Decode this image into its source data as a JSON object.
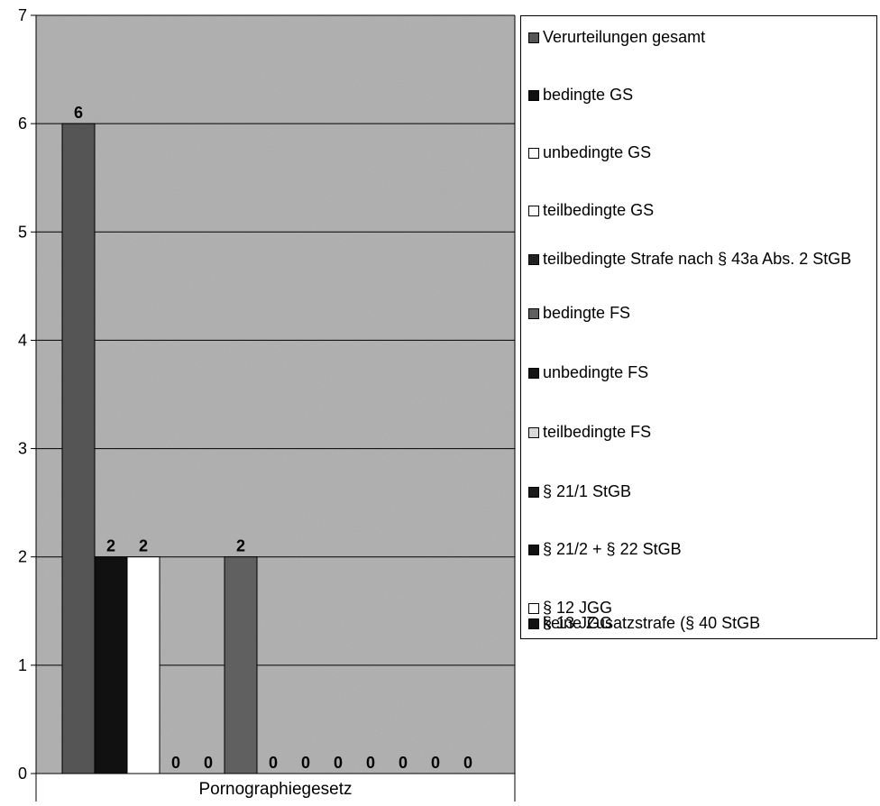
{
  "chart_data": {
    "type": "bar",
    "categories": [
      "Pornographiegesetz"
    ],
    "series": [
      {
        "name": "Verurteilungen gesamt",
        "values": [
          6
        ],
        "color": "#555555"
      },
      {
        "name": "bedingte GS",
        "values": [
          2
        ],
        "color": "#111111"
      },
      {
        "name": "unbedingte GS",
        "values": [
          2
        ],
        "color": "#ffffff"
      },
      {
        "name": "teilbedingte GS",
        "values": [
          0
        ],
        "color": "#ffffff"
      },
      {
        "name": "teilbedingte Strafe nach § 43a Abs. 2 StGB",
        "values": [
          0
        ],
        "color": "#222222"
      },
      {
        "name": "bedingte FS",
        "values": [
          2
        ],
        "color": "#606060"
      },
      {
        "name": "unbedingte FS",
        "values": [
          0
        ],
        "color": "#151515"
      },
      {
        "name": "teilbedingte FS",
        "values": [
          0
        ],
        "color": "#d8d8d8"
      },
      {
        "name": "§ 21/1 StGB",
        "values": [
          0
        ],
        "color": "#1a1a1a"
      },
      {
        "name": "§ 21/2 + § 22 StGB",
        "values": [
          0
        ],
        "color": "#111111"
      },
      {
        "name": "§ 12 JGG",
        "values": [
          0
        ],
        "color": "#ffffff"
      },
      {
        "name": "§ 13 JGG",
        "values": [
          0
        ],
        "color": "#7a7a7a"
      },
      {
        "name": "keine Zusatzstrafe (§ 40 StGB",
        "values": [
          0
        ],
        "color": "#111111"
      }
    ],
    "y_ticks": [
      "0",
      "1",
      "2",
      "3",
      "4",
      "5",
      "6",
      "7"
    ],
    "ylim": [
      0,
      7
    ],
    "grid": true,
    "legend_position": "right",
    "plot_background": "#a9a9a9"
  }
}
